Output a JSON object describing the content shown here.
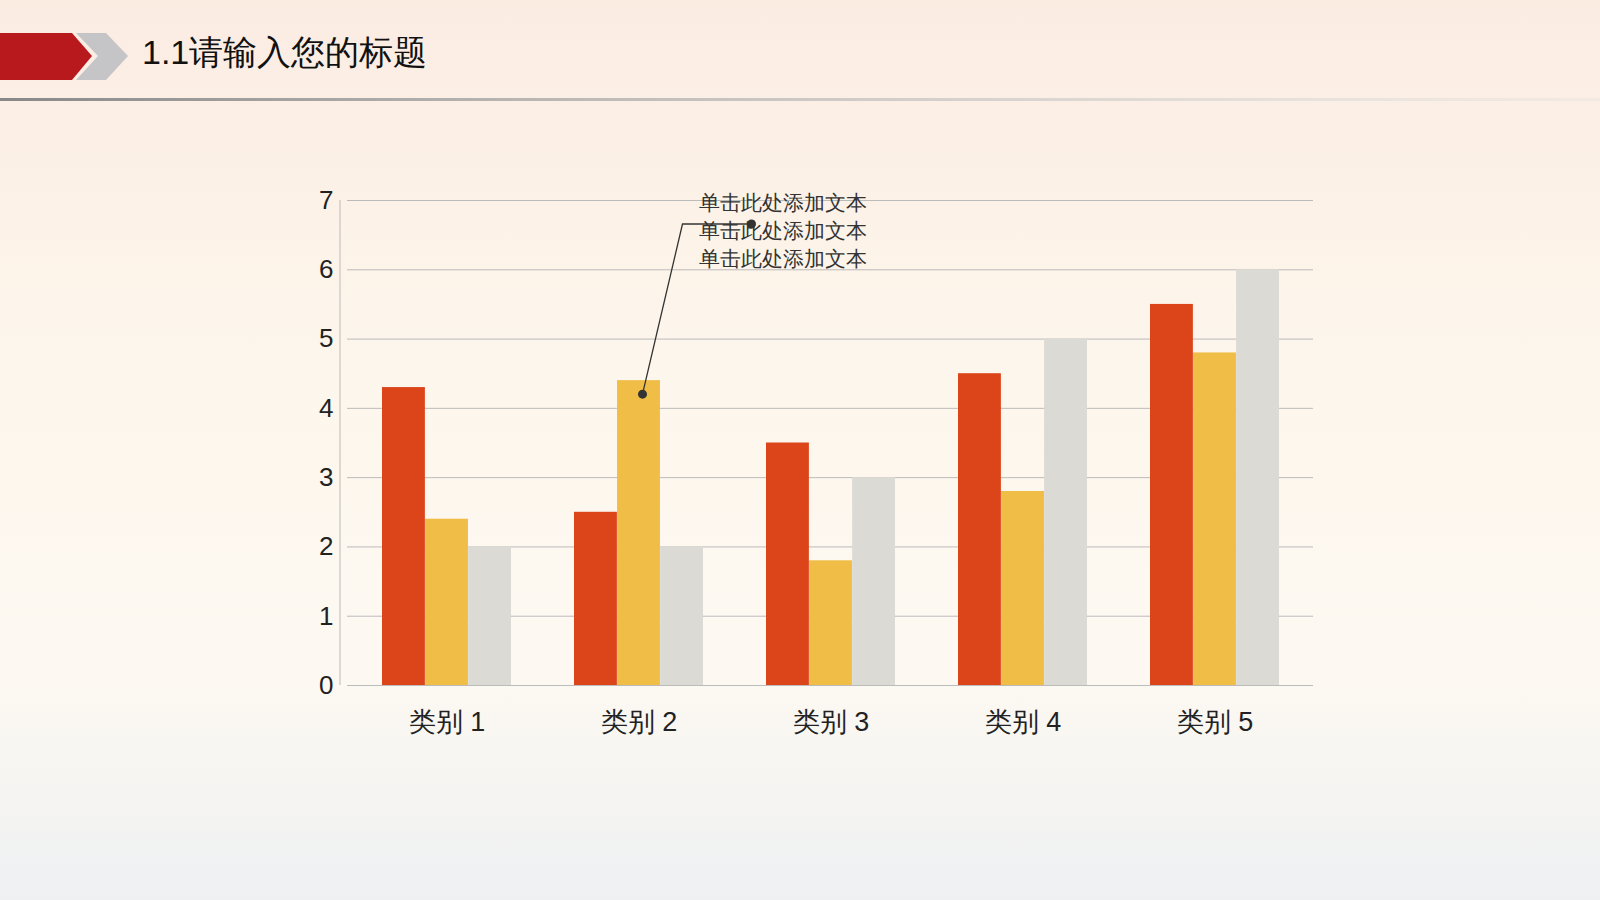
{
  "chart_data": {
    "type": "bar",
    "title": "1.1请输入您的标题",
    "categories": [
      "类别 1",
      "类别 2",
      "类别 3",
      "类别 4",
      "类别 5"
    ],
    "series": [
      {
        "color": "#dc4419",
        "values": [
          4.3,
          2.5,
          3.5,
          4.5,
          5.5
        ]
      },
      {
        "color": "#f0be46",
        "values": [
          2.4,
          4.4,
          1.8,
          2.8,
          4.8
        ]
      },
      {
        "color": "#dcdad5",
        "values": [
          2,
          2,
          3,
          5,
          6
        ]
      }
    ],
    "ylim": [
      0,
      7
    ],
    "yticks": [
      0,
      1,
      2,
      3,
      4,
      5,
      6,
      7
    ],
    "grid": true,
    "annotations": [
      {
        "text": [
          "单击此处添加文本",
          "单击此处添加文本",
          "单击此处添加文本"
        ],
        "category": "类别 2"
      }
    ]
  }
}
